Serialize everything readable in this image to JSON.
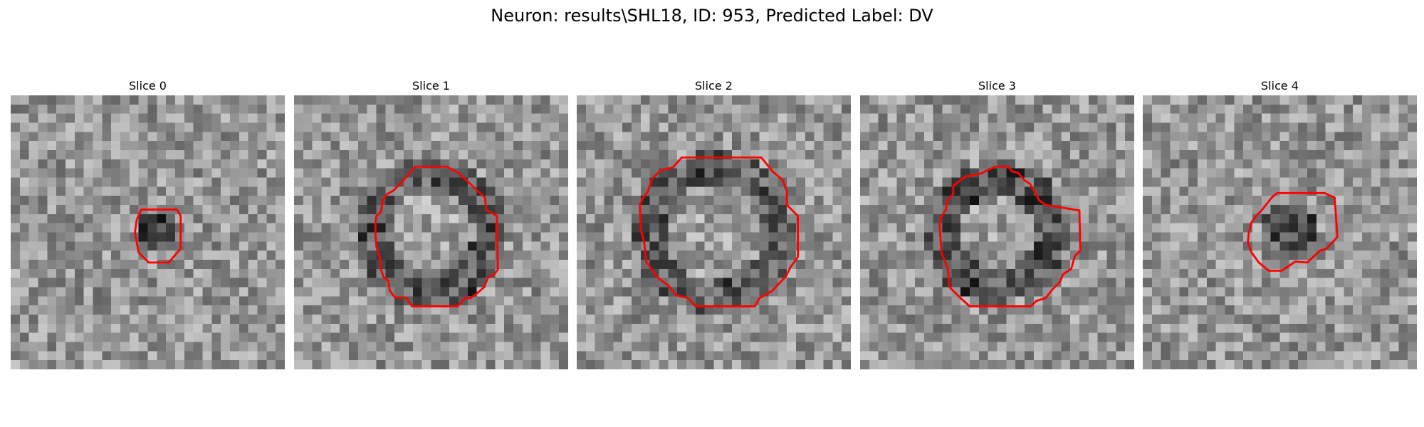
{
  "figure": {
    "suptitle": "Neuron: results\\SHL18, ID: 953, Predicted Label: DV",
    "outline_color": "#ff0000",
    "colormap": "gray",
    "grid_size": 30
  },
  "panels": [
    {
      "title": "Slice 0",
      "blob": {
        "cx": 16,
        "cy": 15,
        "r": 2.5,
        "ring": false,
        "dark": 75
      },
      "contour": [
        [
          14.3,
          12.5
        ],
        [
          18.2,
          12.5
        ],
        [
          18.6,
          13.2
        ],
        [
          18.6,
          16.8
        ],
        [
          17.3,
          18.3
        ],
        [
          15.1,
          18.3
        ],
        [
          14.0,
          17.2
        ],
        [
          13.6,
          15.0
        ],
        [
          13.8,
          13.6
        ]
      ]
    },
    {
      "title": "Slice 1",
      "blob": {
        "cx": 15,
        "cy": 15,
        "r": 6.5,
        "ring": true,
        "dark": 70
      },
      "contour": [
        [
          13.3,
          7.8
        ],
        [
          16.7,
          7.8
        ],
        [
          18.0,
          8.5
        ],
        [
          20.9,
          11.2
        ],
        [
          21.0,
          12.5
        ],
        [
          22.2,
          13.2
        ],
        [
          22.3,
          19.1
        ],
        [
          21.9,
          19.6
        ],
        [
          21.2,
          20.0
        ],
        [
          20.8,
          21.0
        ],
        [
          20.0,
          21.7
        ],
        [
          19.3,
          22.2
        ],
        [
          18.7,
          22.2
        ],
        [
          17.9,
          23.1
        ],
        [
          12.9,
          23.1
        ],
        [
          12.3,
          22.2
        ],
        [
          11.0,
          22.1
        ],
        [
          10.5,
          21.4
        ],
        [
          10.3,
          20.3
        ],
        [
          9.8,
          19.9
        ],
        [
          9.5,
          19.0
        ],
        [
          9.4,
          17.9
        ],
        [
          9.0,
          16.5
        ],
        [
          8.9,
          15.1
        ],
        [
          8.9,
          14.1
        ],
        [
          9.0,
          13.2
        ],
        [
          9.5,
          12.8
        ],
        [
          9.7,
          11.5
        ],
        [
          10.2,
          10.8
        ],
        [
          10.9,
          10.4
        ],
        [
          11.7,
          9.6
        ]
      ]
    },
    {
      "title": "Slice 2",
      "blob": {
        "cx": 15,
        "cy": 15,
        "r": 7.0,
        "ring": true,
        "dark": 65
      },
      "contour": [
        [
          11.5,
          6.8
        ],
        [
          20.2,
          6.8
        ],
        [
          21.5,
          8.4
        ],
        [
          22.5,
          9.2
        ],
        [
          23.0,
          10.5
        ],
        [
          23.0,
          12.0
        ],
        [
          24.2,
          13.2
        ],
        [
          24.2,
          17.7
        ],
        [
          23.4,
          18.8
        ],
        [
          22.9,
          19.8
        ],
        [
          21.4,
          21.4
        ],
        [
          20.0,
          22.2
        ],
        [
          19.5,
          23.1
        ],
        [
          13.0,
          23.1
        ],
        [
          12.2,
          22.2
        ],
        [
          10.9,
          21.9
        ],
        [
          10.0,
          20.8
        ],
        [
          8.8,
          19.9
        ],
        [
          7.6,
          18.2
        ],
        [
          7.4,
          16.2
        ],
        [
          7.0,
          14.6
        ],
        [
          6.9,
          12.0
        ],
        [
          7.2,
          11.3
        ],
        [
          7.8,
          10.5
        ],
        [
          8.2,
          9.2
        ],
        [
          9.2,
          8.2
        ],
        [
          10.5,
          7.9
        ]
      ]
    },
    {
      "title": "Slice 3",
      "blob": {
        "cx": 15,
        "cy": 15,
        "r": 6.0,
        "ring": true,
        "dark": 75
      },
      "contour": [
        [
          14.8,
          7.8
        ],
        [
          16.2,
          7.8
        ],
        [
          16.6,
          8.3
        ],
        [
          17.3,
          8.5
        ],
        [
          18.0,
          9.3
        ],
        [
          18.6,
          9.7
        ],
        [
          19.2,
          10.7
        ],
        [
          19.6,
          11.5
        ],
        [
          20.3,
          12.0
        ],
        [
          24.0,
          12.6
        ],
        [
          24.1,
          17.0
        ],
        [
          23.5,
          17.6
        ],
        [
          23.1,
          19.0
        ],
        [
          22.2,
          19.6
        ],
        [
          21.9,
          20.4
        ],
        [
          21.1,
          21.2
        ],
        [
          20.3,
          22.2
        ],
        [
          19.3,
          22.5
        ],
        [
          18.7,
          23.1
        ],
        [
          12.0,
          23.1
        ],
        [
          11.0,
          22.2
        ],
        [
          10.4,
          21.6
        ],
        [
          9.8,
          21.0
        ],
        [
          9.7,
          19.9
        ],
        [
          9.6,
          19.0
        ],
        [
          8.9,
          17.2
        ],
        [
          8.7,
          14.1
        ],
        [
          8.8,
          13.4
        ],
        [
          9.4,
          12.5
        ],
        [
          9.5,
          11.6
        ],
        [
          10.2,
          10.8
        ],
        [
          10.2,
          9.9
        ],
        [
          11.5,
          8.9
        ],
        [
          13.1,
          8.6
        ]
      ]
    },
    {
      "title": "Slice 4",
      "blob": {
        "cx": 16,
        "cy": 15,
        "r": 3.5,
        "ring": false,
        "dark": 60
      },
      "contour": [
        [
          14.7,
          10.7
        ],
        [
          19.9,
          10.7
        ],
        [
          21.0,
          11.2
        ],
        [
          21.3,
          15.5
        ],
        [
          20.1,
          16.8
        ],
        [
          19.4,
          17.0
        ],
        [
          18.0,
          18.3
        ],
        [
          16.7,
          18.2
        ],
        [
          15.2,
          19.2
        ],
        [
          13.8,
          19.2
        ],
        [
          12.7,
          18.3
        ],
        [
          11.9,
          17.2
        ],
        [
          11.5,
          16.1
        ],
        [
          11.6,
          15.1
        ],
        [
          11.9,
          13.9
        ],
        [
          12.4,
          13.2
        ],
        [
          13.0,
          12.6
        ],
        [
          14.1,
          11.2
        ]
      ]
    }
  ]
}
